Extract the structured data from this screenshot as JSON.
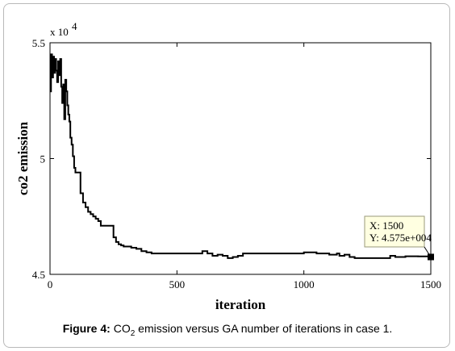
{
  "caption": {
    "label": "Figure 4:",
    "text_pre": "CO",
    "text_sub": "2",
    "text_post": " emission versus GA number of iterations in case 1."
  },
  "chart_data": {
    "type": "line",
    "xlabel": "iteration",
    "ylabel": "co2 emission",
    "xlim": [
      0,
      1500
    ],
    "ylim": [
      45000,
      55000
    ],
    "xticks": [
      0,
      500,
      1000,
      1500
    ],
    "xtick_labels": [
      "0",
      "500",
      "1000",
      "1500"
    ],
    "yticks": [
      45000,
      50000,
      55000
    ],
    "ytick_labels": [
      "4.5",
      "5",
      "5.5"
    ],
    "y_multiplier_label": "x 10",
    "y_multiplier_exp": "4",
    "grid": false,
    "series": [
      {
        "x": [
          0,
          4,
          8,
          12,
          16,
          20,
          24,
          28,
          32,
          36,
          40,
          44,
          48,
          52,
          56,
          60,
          64,
          68,
          72,
          76,
          80,
          85,
          90,
          95,
          100,
          110,
          120,
          130,
          140,
          150,
          160,
          170,
          180,
          190,
          200,
          210,
          230,
          250,
          260,
          270,
          280,
          290,
          300,
          320,
          340,
          360,
          380,
          400,
          450,
          500,
          550,
          600,
          620,
          640,
          660,
          680,
          700,
          720,
          740,
          760,
          800,
          850,
          900,
          950,
          1000,
          1050,
          1100,
          1130,
          1140,
          1160,
          1180,
          1200,
          1250,
          1300,
          1320,
          1340,
          1360,
          1400,
          1450,
          1500
        ],
        "y": [
          52900,
          54500,
          53500,
          54400,
          53700,
          54300,
          53800,
          53300,
          54200,
          53600,
          54300,
          53100,
          52400,
          53200,
          51700,
          53400,
          52900,
          52300,
          51900,
          51600,
          50900,
          50600,
          50100,
          49600,
          49400,
          49400,
          48500,
          48100,
          47900,
          47700,
          47600,
          47500,
          47400,
          47300,
          47100,
          47100,
          47100,
          46600,
          46400,
          46300,
          46250,
          46200,
          46200,
          46150,
          46100,
          46000,
          45950,
          45900,
          45900,
          45900,
          45900,
          46000,
          45900,
          45800,
          45850,
          45800,
          45700,
          45750,
          45800,
          45900,
          45900,
          45900,
          45900,
          45900,
          45950,
          45900,
          45850,
          45900,
          45800,
          45850,
          45750,
          45700,
          45700,
          45700,
          45700,
          45800,
          45750,
          45780,
          45775,
          45750
        ]
      }
    ],
    "annotation": {
      "x": 1500,
      "y": 45750,
      "line1": "X: 1500",
      "line2": "Y: 4.575e+004"
    }
  }
}
